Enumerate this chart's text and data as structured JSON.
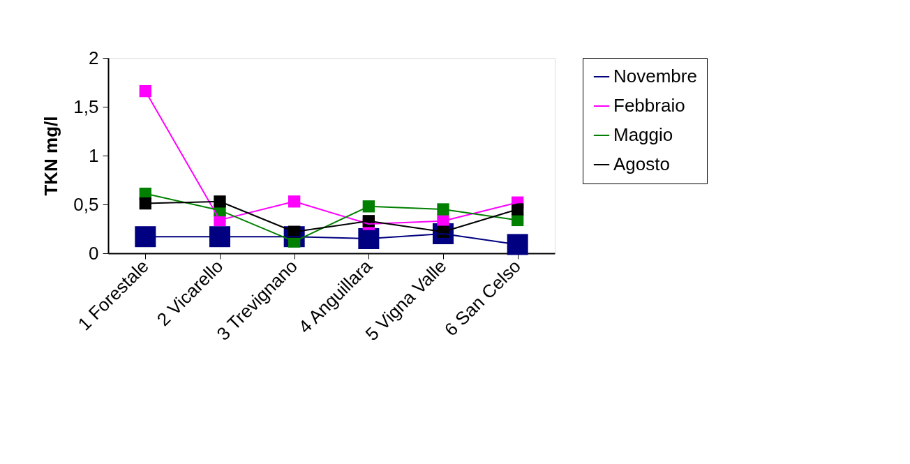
{
  "chart_data": {
    "type": "line",
    "ylabel": "TKN mg/l",
    "categories": [
      "1 Forestale",
      "2 Vicarello",
      "3 Trevignano",
      "4 Anguillara",
      "5 Vigna Valle",
      "6 San Celso"
    ],
    "series": [
      {
        "name": "Novembre",
        "color": "#000080",
        "values": [
          0.17,
          0.17,
          0.17,
          0.15,
          0.2,
          0.09
        ]
      },
      {
        "name": "Febbraio",
        "color": "#ff00ff",
        "values": [
          1.66,
          0.34,
          0.53,
          0.3,
          0.33,
          0.52
        ]
      },
      {
        "name": "Maggio",
        "color": "#008000",
        "values": [
          0.61,
          0.44,
          0.12,
          0.48,
          0.45,
          0.34
        ]
      },
      {
        "name": "Agosto",
        "color": "#000000",
        "values": [
          0.51,
          0.53,
          0.22,
          0.33,
          0.22,
          0.45
        ]
      }
    ],
    "ylim": [
      0,
      2
    ],
    "yticks": [
      0,
      {
        "value": 0.5,
        "label": "0,5"
      },
      1,
      {
        "value": 1.5,
        "label": "1,5"
      },
      2
    ],
    "marker": "square",
    "legend": "right",
    "grid": false
  }
}
